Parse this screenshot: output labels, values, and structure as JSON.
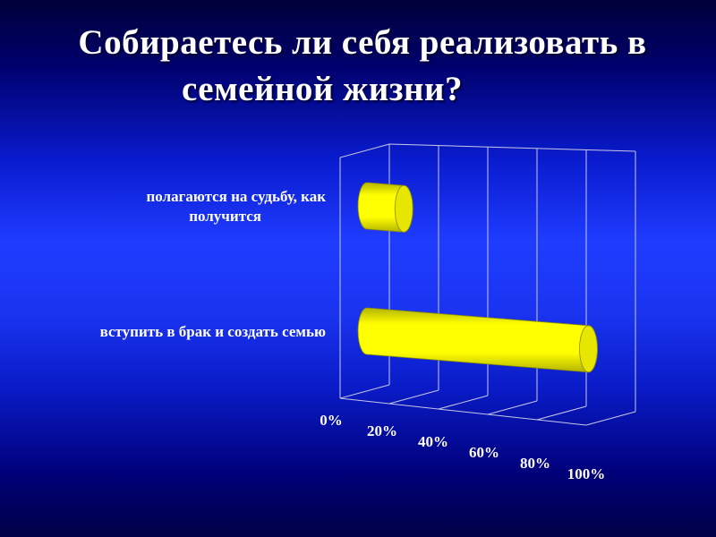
{
  "slide": {
    "title_line1": "Собираетесь ли себя реализовать в",
    "title_line2": "семейной жизни?"
  },
  "chart_data": {
    "type": "bar",
    "orientation": "horizontal",
    "style": "3d-cylinder",
    "categories": [
      "полагаются на судьбу, как получится",
      "вступить в брак и создать семью"
    ],
    "category_lines": [
      [
        "полагаются на судьбу, как",
        "получится"
      ],
      [
        "вступить в брак и создать семью"
      ]
    ],
    "values": [
      15,
      90
    ],
    "xlim": [
      0,
      100
    ],
    "x_ticks": [
      "0%",
      "20%",
      "40%",
      "60%",
      "80%",
      "100%"
    ],
    "grid": true,
    "legend": "none",
    "colors": {
      "bar": "#ffff00",
      "bar_shade": "#b3b300",
      "grid": "#c8c8e6",
      "text": "#ffffff"
    }
  }
}
